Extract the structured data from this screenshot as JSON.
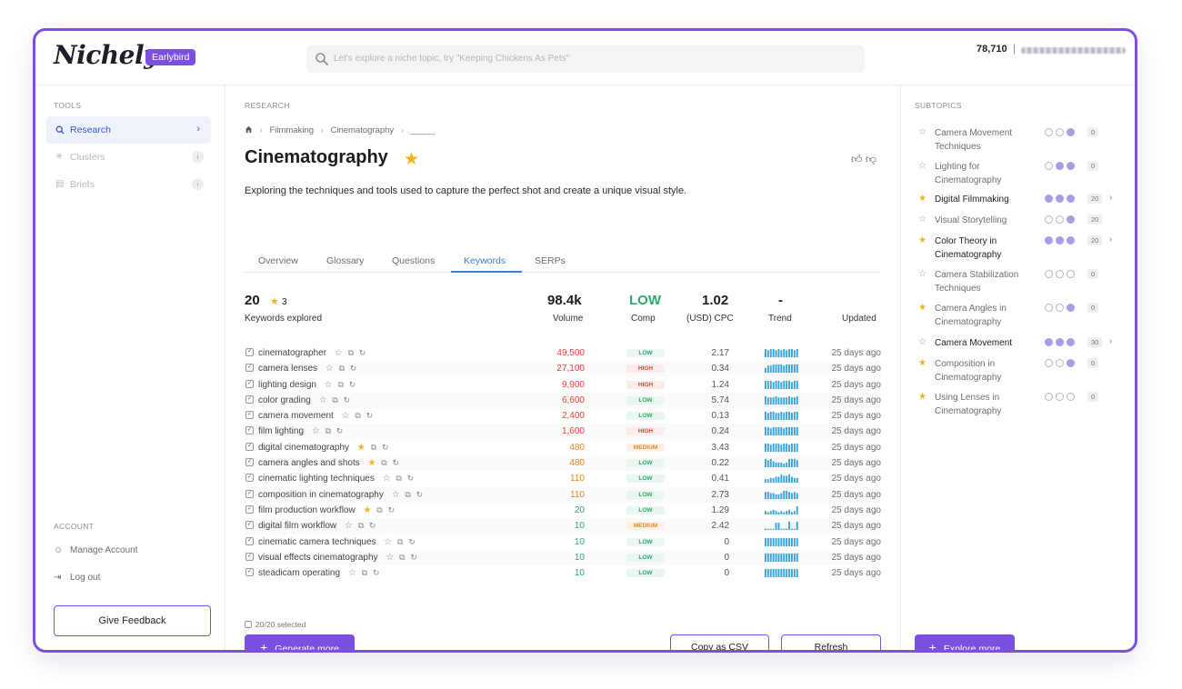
{
  "app": {
    "logo": "Nichely",
    "badge": "Earlybird"
  },
  "header": {
    "search_placeholder": "Let's explore a niche topic, try \"Keeping Chickens As Pets\"",
    "credits": "78,710",
    "separator": "|"
  },
  "sidebar": {
    "tools_label": "TOOLS",
    "items": [
      {
        "label": "Research",
        "icon": "search-icon"
      },
      {
        "label": "Clusters",
        "icon": "clusters-icon",
        "info": "i"
      },
      {
        "label": "Briefs",
        "icon": "briefs-icon",
        "info": "i"
      }
    ],
    "account_label": "ACCOUNT",
    "manage_account": "Manage Account",
    "log_out": "Log out",
    "feedback_button": "Give Feedback"
  },
  "main": {
    "section_label": "RESEARCH",
    "breadcrumb": [
      "Filmmaking",
      "Cinematography",
      "_____"
    ],
    "title": "Cinematography",
    "description": "Exploring the techniques and tools used to capture the perfect shot and create a unique visual style.",
    "tabs": [
      "Overview",
      "Glossary",
      "Questions",
      "Keywords",
      "SERPs"
    ],
    "active_tab": "Keywords",
    "summary": {
      "keywords_count": "20",
      "starred_count": "3",
      "keywords_label": "Keywords explored",
      "volume_value": "98.4k",
      "volume_label": "Volume",
      "comp_value": "LOW",
      "comp_label": "Comp",
      "cpc_value": "1.02",
      "cpc_label": "(USD) CPC",
      "trend_value": "-",
      "trend_label": "Trend",
      "updated_label": "Updated"
    },
    "keywords": [
      {
        "keyword": "cinematographer",
        "starred": false,
        "volume": "49,500",
        "comp": "LOW",
        "cpc": "2.17",
        "updated": "25 days ago",
        "trend": [
          7,
          6,
          7,
          7,
          6,
          7,
          6,
          7,
          6,
          7,
          7,
          6,
          7
        ]
      },
      {
        "keyword": "camera lenses",
        "starred": false,
        "volume": "27,100",
        "comp": "HIGH",
        "cpc": "0.34",
        "updated": "25 days ago",
        "trend": [
          4,
          6,
          6,
          7,
          7,
          7,
          7,
          6,
          7,
          7,
          7,
          7,
          7
        ]
      },
      {
        "keyword": "lighting design",
        "starred": false,
        "volume": "9,900",
        "comp": "HIGH",
        "cpc": "1.24",
        "updated": "25 days ago",
        "trend": [
          7,
          7,
          7,
          6,
          7,
          7,
          6,
          7,
          7,
          7,
          6,
          7,
          7
        ]
      },
      {
        "keyword": "color grading",
        "starred": false,
        "volume": "6,600",
        "comp": "LOW",
        "cpc": "5.74",
        "updated": "25 days ago",
        "trend": [
          7,
          6,
          6,
          6,
          7,
          6,
          6,
          6,
          6,
          7,
          6,
          6,
          7
        ]
      },
      {
        "keyword": "camera movement",
        "starred": false,
        "volume": "2,400",
        "comp": "LOW",
        "cpc": "0.13",
        "updated": "25 days ago",
        "trend": [
          7,
          6,
          7,
          7,
          6,
          6,
          7,
          6,
          7,
          7,
          6,
          7,
          7
        ]
      },
      {
        "keyword": "film lighting",
        "starred": false,
        "volume": "1,600",
        "comp": "HIGH",
        "cpc": "0.24",
        "updated": "25 days ago",
        "trend": [
          7,
          7,
          6,
          7,
          7,
          7,
          7,
          6,
          7,
          7,
          7,
          7,
          7
        ]
      },
      {
        "keyword": "digital cinematography",
        "starred": true,
        "volume": "480",
        "comp": "MEDIUM",
        "cpc": "3.43",
        "updated": "25 days ago",
        "trend": [
          7,
          7,
          6,
          7,
          7,
          7,
          6,
          7,
          7,
          6,
          7,
          7,
          7
        ]
      },
      {
        "keyword": "camera angles and shots",
        "starred": true,
        "volume": "480",
        "comp": "LOW",
        "cpc": "0.22",
        "updated": "25 days ago",
        "trend": [
          7,
          6,
          7,
          5,
          4,
          4,
          4,
          3,
          4,
          7,
          7,
          7,
          6
        ]
      },
      {
        "keyword": "cinematic lighting techniques",
        "starred": false,
        "volume": "110",
        "comp": "LOW",
        "cpc": "0.41",
        "updated": "25 days ago",
        "trend": [
          3,
          3,
          4,
          4,
          5,
          5,
          7,
          6,
          6,
          7,
          5,
          4,
          4
        ]
      },
      {
        "keyword": "composition in cinematography",
        "starred": false,
        "volume": "110",
        "comp": "LOW",
        "cpc": "2.73",
        "updated": "25 days ago",
        "trend": [
          6,
          6,
          5,
          5,
          4,
          4,
          5,
          7,
          7,
          6,
          5,
          6,
          5
        ]
      },
      {
        "keyword": "film production workflow",
        "starred": true,
        "volume": "20",
        "comp": "LOW",
        "cpc": "1.29",
        "updated": "25 days ago",
        "trend": [
          3,
          2,
          3,
          4,
          3,
          2,
          3,
          2,
          3,
          4,
          2,
          3,
          7
        ]
      },
      {
        "keyword": "digital film workflow",
        "starred": false,
        "volume": "10",
        "comp": "MEDIUM",
        "cpc": "2.42",
        "updated": "25 days ago",
        "trend": [
          1,
          1,
          1,
          1,
          6,
          6,
          1,
          1,
          1,
          7,
          1,
          1,
          7
        ]
      },
      {
        "keyword": "cinematic camera techniques",
        "starred": false,
        "volume": "10",
        "comp": "LOW",
        "cpc": "0",
        "updated": "25 days ago",
        "trend": [
          7,
          7,
          7,
          7,
          7,
          7,
          7,
          7,
          7,
          7,
          7,
          7,
          7
        ]
      },
      {
        "keyword": "visual effects cinematography",
        "starred": false,
        "volume": "10",
        "comp": "LOW",
        "cpc": "0",
        "updated": "25 days ago",
        "trend": [
          7,
          7,
          7,
          7,
          7,
          7,
          7,
          7,
          7,
          7,
          7,
          7,
          7
        ]
      },
      {
        "keyword": "steadicam operating",
        "starred": false,
        "volume": "10",
        "comp": "LOW",
        "cpc": "0",
        "updated": "25 days ago",
        "trend": [
          7,
          7,
          7,
          7,
          7,
          7,
          7,
          7,
          7,
          7,
          7,
          7,
          7
        ]
      }
    ],
    "selected": "20/20 selected",
    "generate_button": "Generate more",
    "csv_button": "Copy as CSV",
    "refresh_button": "Refresh"
  },
  "subtopics": {
    "label": "SUBTOPICS",
    "items": [
      {
        "label": "Camera Movement Techniques",
        "starred": false,
        "bold": false,
        "dots": [
          false,
          false,
          true
        ],
        "count": "0",
        "expand": false
      },
      {
        "label": "Lighting for Cinematography",
        "starred": false,
        "bold": false,
        "dots": [
          false,
          true,
          true
        ],
        "count": "0",
        "expand": false
      },
      {
        "label": "Digital Filmmaking",
        "starred": true,
        "bold": true,
        "dots": [
          true,
          true,
          true
        ],
        "count": "20",
        "expand": true
      },
      {
        "label": "Visual Storytelling",
        "starred": false,
        "bold": false,
        "dots": [
          false,
          false,
          true
        ],
        "count": "20",
        "expand": false
      },
      {
        "label": "Color Theory in Cinematography",
        "starred": true,
        "bold": true,
        "dots": [
          true,
          true,
          true
        ],
        "count": "20",
        "expand": true
      },
      {
        "label": "Camera Stabilization Techniques",
        "starred": false,
        "bold": false,
        "dots": [
          false,
          false,
          false
        ],
        "count": "0",
        "expand": false
      },
      {
        "label": "Camera Angles in Cinematography",
        "starred": true,
        "bold": false,
        "dots": [
          false,
          false,
          true
        ],
        "count": "0",
        "expand": false
      },
      {
        "label": "Camera Movement",
        "starred": false,
        "bold": true,
        "dots": [
          true,
          true,
          true
        ],
        "count": "30",
        "expand": true
      },
      {
        "label": "Composition in Cinematography",
        "starred": true,
        "bold": false,
        "dots": [
          false,
          false,
          true
        ],
        "count": "0",
        "expand": false
      },
      {
        "label": "Using Lenses in Cinematography",
        "starred": true,
        "bold": false,
        "dots": [
          false,
          false,
          false
        ],
        "count": "0",
        "expand": false
      }
    ],
    "explore_button": "Explore more"
  },
  "colors": {
    "brand": "#7b4fe0",
    "vol_red": "#e0443a",
    "vol_orange": "#e7852a",
    "vol_green": "#2fa86a",
    "trend_blue": "#3aa3d8",
    "star": "#f3b21a"
  }
}
